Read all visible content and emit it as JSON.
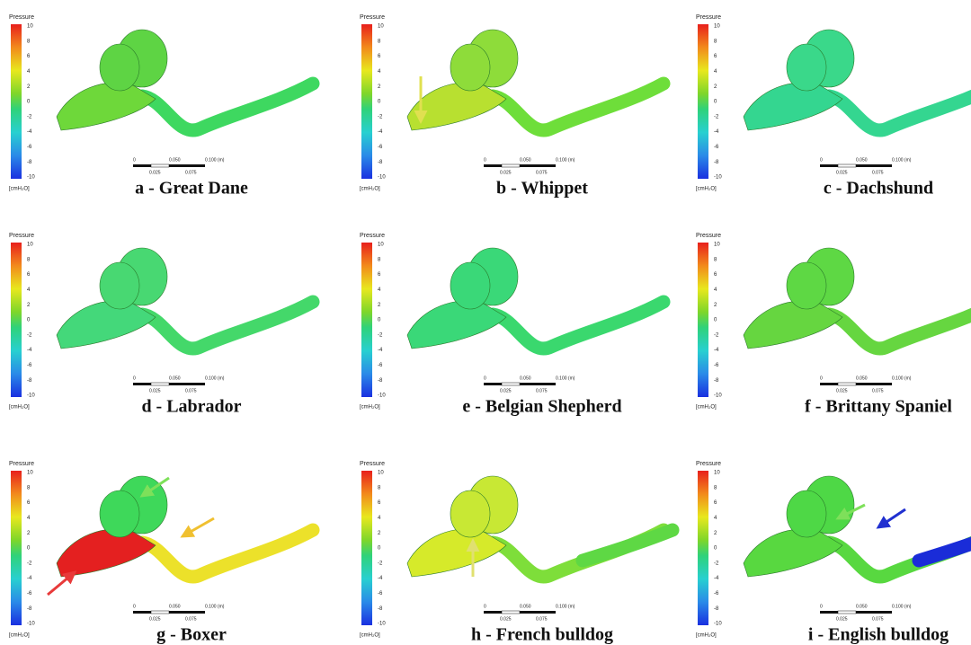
{
  "colorbar": {
    "title": "Pressure",
    "ticks": [
      10,
      8,
      6,
      4,
      2,
      0,
      -2,
      -4,
      -6,
      -8,
      -10
    ],
    "unit": "[cmH₂O]"
  },
  "scale_bar": {
    "labels": [
      "0",
      "0.050",
      "0.100 (m)"
    ],
    "sublabels": [
      "0.025",
      "0.075"
    ]
  },
  "panels": [
    {
      "label": "a - Great Dane"
    },
    {
      "label": "b - Whippet"
    },
    {
      "label": "c - Dachshund"
    },
    {
      "label": "d - Labrador"
    },
    {
      "label": "e - Belgian Shepherd"
    },
    {
      "label": "f - Brittany Spaniel"
    },
    {
      "label": "g - Boxer"
    },
    {
      "label": "h - French bulldog"
    },
    {
      "label": "i - English bulldog"
    }
  ]
}
